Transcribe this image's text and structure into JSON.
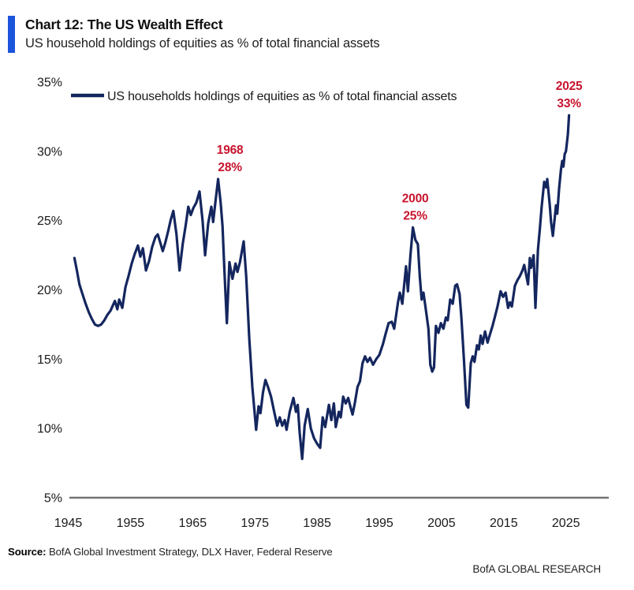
{
  "header": {
    "title": "Chart 12: The US Wealth Effect",
    "subtitle": "US household holdings of equities as % of total financial assets"
  },
  "source": {
    "label": "Source:",
    "text": " BofA Global Investment Strategy, DLX Haver, Federal Reserve"
  },
  "footer": {
    "brand": "BofA GLOBAL RESEARCH"
  },
  "colors": {
    "accent_bar": "#1B55DB",
    "line": "#14265E",
    "annotation": "#C8132E",
    "axis": "#737373",
    "text": "#1a1a1a"
  },
  "chart_data": {
    "type": "line",
    "title": "Chart 12: The US Wealth Effect",
    "subtitle": "US household holdings of equities as % of total financial assets",
    "legend": [
      "US households holdings of equities as % of total financial assets"
    ],
    "legend_position": "top-left",
    "grid": false,
    "xlabel": "",
    "ylabel": "",
    "xlim": [
      1944,
      2027.5
    ],
    "ylim": [
      5,
      35
    ],
    "x_ticks": [
      1945,
      1955,
      1965,
      1975,
      1985,
      1995,
      2005,
      2015,
      2025
    ],
    "y_ticks": [
      "35%",
      "30%",
      "25%",
      "20%",
      "15%",
      "10%",
      "5%"
    ],
    "y_tick_values": [
      35,
      30,
      25,
      20,
      15,
      10,
      5
    ],
    "annotations": [
      {
        "line1": "1968",
        "line2": "28%",
        "anchor_year": 1969.1,
        "anchor_value": 28.0
      },
      {
        "line1": "2000",
        "line2": "25%",
        "anchor_year": 2000.4,
        "anchor_value": 24.5
      },
      {
        "line1": "2025",
        "line2": "33%",
        "anchor_year": 2025.5,
        "anchor_value": 32.6
      }
    ],
    "series": [
      {
        "name": "US households holdings of equities as % of total financial assets",
        "points": [
          [
            1946.0,
            22.3
          ],
          [
            1946.4,
            21.4
          ],
          [
            1946.8,
            20.4
          ],
          [
            1947.3,
            19.7
          ],
          [
            1947.8,
            19.0
          ],
          [
            1948.3,
            18.4
          ],
          [
            1948.8,
            17.9
          ],
          [
            1949.3,
            17.5
          ],
          [
            1949.8,
            17.4
          ],
          [
            1950.3,
            17.5
          ],
          [
            1950.8,
            17.8
          ],
          [
            1951.3,
            18.2
          ],
          [
            1951.8,
            18.5
          ],
          [
            1952.2,
            18.9
          ],
          [
            1952.5,
            19.2
          ],
          [
            1952.9,
            18.6
          ],
          [
            1953.2,
            19.3
          ],
          [
            1953.7,
            18.7
          ],
          [
            1954.2,
            20.2
          ],
          [
            1954.7,
            21.0
          ],
          [
            1955.2,
            21.9
          ],
          [
            1955.7,
            22.6
          ],
          [
            1956.2,
            23.2
          ],
          [
            1956.6,
            22.4
          ],
          [
            1957.0,
            23.0
          ],
          [
            1957.5,
            21.4
          ],
          [
            1958.0,
            22.1
          ],
          [
            1958.5,
            23.1
          ],
          [
            1959.0,
            23.8
          ],
          [
            1959.4,
            24.0
          ],
          [
            1959.8,
            23.4
          ],
          [
            1960.2,
            22.8
          ],
          [
            1960.6,
            23.4
          ],
          [
            1961.1,
            24.3
          ],
          [
            1961.5,
            25.1
          ],
          [
            1961.9,
            25.7
          ],
          [
            1962.4,
            24.0
          ],
          [
            1962.9,
            21.4
          ],
          [
            1963.4,
            23.3
          ],
          [
            1963.9,
            24.7
          ],
          [
            1964.3,
            26.0
          ],
          [
            1964.7,
            25.4
          ],
          [
            1965.1,
            25.9
          ],
          [
            1965.6,
            26.3
          ],
          [
            1966.1,
            27.1
          ],
          [
            1966.6,
            25.0
          ],
          [
            1967.0,
            22.5
          ],
          [
            1967.5,
            24.8
          ],
          [
            1968.0,
            26.0
          ],
          [
            1968.3,
            24.9
          ],
          [
            1968.7,
            26.5
          ],
          [
            1969.1,
            28.0
          ],
          [
            1969.5,
            26.3
          ],
          [
            1969.8,
            24.6
          ],
          [
            1970.1,
            21.5
          ],
          [
            1970.5,
            17.6
          ],
          [
            1970.9,
            22.0
          ],
          [
            1971.4,
            20.8
          ],
          [
            1971.9,
            21.9
          ],
          [
            1972.2,
            21.3
          ],
          [
            1972.6,
            22.0
          ],
          [
            1973.2,
            23.5
          ],
          [
            1973.6,
            21.0
          ],
          [
            1974.1,
            16.5
          ],
          [
            1974.6,
            13.0
          ],
          [
            1975.2,
            9.9
          ],
          [
            1975.6,
            11.6
          ],
          [
            1975.9,
            11.1
          ],
          [
            1976.3,
            12.6
          ],
          [
            1976.7,
            13.5
          ],
          [
            1977.1,
            13.0
          ],
          [
            1977.6,
            12.3
          ],
          [
            1978.1,
            11.2
          ],
          [
            1978.6,
            10.2
          ],
          [
            1979.0,
            10.8
          ],
          [
            1979.4,
            10.2
          ],
          [
            1979.8,
            10.6
          ],
          [
            1980.1,
            9.9
          ],
          [
            1980.6,
            11.2
          ],
          [
            1981.2,
            12.2
          ],
          [
            1981.6,
            11.2
          ],
          [
            1981.9,
            11.7
          ],
          [
            1982.2,
            9.7
          ],
          [
            1982.6,
            7.8
          ],
          [
            1983.0,
            10.2
          ],
          [
            1983.5,
            11.4
          ],
          [
            1984.0,
            10.0
          ],
          [
            1984.5,
            9.3
          ],
          [
            1985.0,
            8.9
          ],
          [
            1985.5,
            8.6
          ],
          [
            1985.9,
            10.8
          ],
          [
            1986.3,
            10.1
          ],
          [
            1986.9,
            11.7
          ],
          [
            1987.3,
            10.6
          ],
          [
            1987.7,
            11.8
          ],
          [
            1988.0,
            10.1
          ],
          [
            1988.5,
            11.2
          ],
          [
            1988.8,
            10.8
          ],
          [
            1989.2,
            12.3
          ],
          [
            1989.6,
            11.8
          ],
          [
            1990.0,
            12.2
          ],
          [
            1990.4,
            11.5
          ],
          [
            1990.7,
            11.0
          ],
          [
            1991.1,
            11.9
          ],
          [
            1991.5,
            13.0
          ],
          [
            1991.9,
            13.4
          ],
          [
            1992.3,
            14.7
          ],
          [
            1992.7,
            15.2
          ],
          [
            1993.1,
            14.8
          ],
          [
            1993.5,
            15.1
          ],
          [
            1994.0,
            14.6
          ],
          [
            1994.5,
            15.0
          ],
          [
            1995.0,
            15.3
          ],
          [
            1995.6,
            16.1
          ],
          [
            1996.0,
            16.8
          ],
          [
            1996.5,
            17.6
          ],
          [
            1997.0,
            17.7
          ],
          [
            1997.4,
            17.2
          ],
          [
            1998.0,
            19.1
          ],
          [
            1998.3,
            19.8
          ],
          [
            1998.7,
            19.0
          ],
          [
            1999.3,
            21.7
          ],
          [
            1999.6,
            19.9
          ],
          [
            2000.0,
            22.5
          ],
          [
            2000.4,
            24.5
          ],
          [
            2000.8,
            23.6
          ],
          [
            2001.2,
            23.3
          ],
          [
            2001.5,
            21.0
          ],
          [
            2001.8,
            19.3
          ],
          [
            2002.1,
            19.8
          ],
          [
            2002.5,
            18.5
          ],
          [
            2002.9,
            17.2
          ],
          [
            2003.2,
            14.6
          ],
          [
            2003.5,
            14.1
          ],
          [
            2003.8,
            14.4
          ],
          [
            2004.1,
            17.4
          ],
          [
            2004.5,
            16.9
          ],
          [
            2004.9,
            17.6
          ],
          [
            2005.3,
            17.2
          ],
          [
            2005.7,
            18.0
          ],
          [
            2006.0,
            17.8
          ],
          [
            2006.4,
            19.3
          ],
          [
            2006.8,
            19.0
          ],
          [
            2007.2,
            20.3
          ],
          [
            2007.5,
            20.4
          ],
          [
            2007.9,
            19.7
          ],
          [
            2008.2,
            18.0
          ],
          [
            2008.6,
            15.0
          ],
          [
            2009.0,
            11.7
          ],
          [
            2009.3,
            11.5
          ],
          [
            2009.7,
            14.7
          ],
          [
            2010.0,
            15.2
          ],
          [
            2010.3,
            14.8
          ],
          [
            2010.7,
            16.0
          ],
          [
            2011.0,
            15.7
          ],
          [
            2011.3,
            16.7
          ],
          [
            2011.6,
            16.1
          ],
          [
            2012.0,
            17.0
          ],
          [
            2012.4,
            16.2
          ],
          [
            2012.8,
            16.8
          ],
          [
            2013.2,
            17.4
          ],
          [
            2013.6,
            18.1
          ],
          [
            2014.0,
            18.8
          ],
          [
            2014.5,
            19.9
          ],
          [
            2014.9,
            19.5
          ],
          [
            2015.3,
            19.8
          ],
          [
            2015.7,
            18.7
          ],
          [
            2016.0,
            19.1
          ],
          [
            2016.3,
            18.8
          ],
          [
            2016.8,
            20.3
          ],
          [
            2017.2,
            20.7
          ],
          [
            2017.6,
            21.0
          ],
          [
            2018.0,
            21.4
          ],
          [
            2018.3,
            21.8
          ],
          [
            2018.9,
            20.4
          ],
          [
            2019.2,
            22.3
          ],
          [
            2019.4,
            21.6
          ],
          [
            2019.8,
            22.5
          ],
          [
            2020.1,
            18.7
          ],
          [
            2020.5,
            22.9
          ],
          [
            2020.8,
            24.4
          ],
          [
            2021.1,
            26.0
          ],
          [
            2021.5,
            27.8
          ],
          [
            2021.8,
            27.4
          ],
          [
            2022.0,
            28.0
          ],
          [
            2022.4,
            26.1
          ],
          [
            2022.6,
            24.9
          ],
          [
            2022.9,
            23.9
          ],
          [
            2023.2,
            25.2
          ],
          [
            2023.4,
            26.1
          ],
          [
            2023.6,
            25.5
          ],
          [
            2023.9,
            27.3
          ],
          [
            2024.2,
            28.7
          ],
          [
            2024.4,
            29.3
          ],
          [
            2024.6,
            28.9
          ],
          [
            2024.8,
            29.8
          ],
          [
            2025.0,
            30.0
          ],
          [
            2025.3,
            31.2
          ],
          [
            2025.5,
            32.6
          ]
        ]
      }
    ]
  }
}
